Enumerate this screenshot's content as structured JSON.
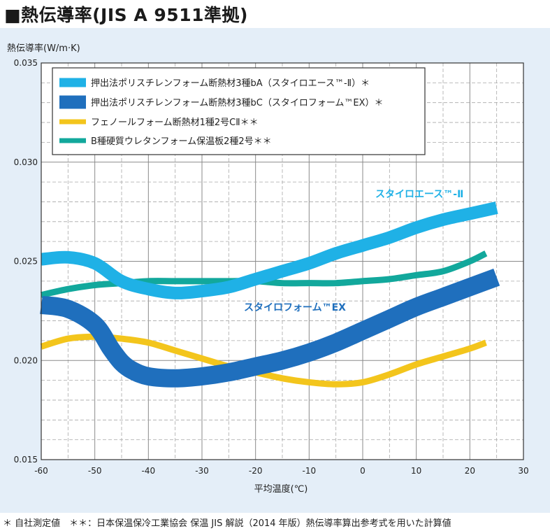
{
  "title": "■熱伝導率(JIS A 9511準拠)",
  "footnote": "＊ 自社測定値　＊＊：日本保温保冷工業協会 保温 JIS 解説（2014 年版）熱伝導率算出参考式を用いた計算値",
  "chart_data": {
    "type": "line",
    "ylabel": "熱伝導率(W/m·K)",
    "xlabel": "平均温度(℃)",
    "xlim": [
      -60,
      30
    ],
    "ylim": [
      0.015,
      0.035
    ],
    "x_ticks": [
      "-60",
      "-50",
      "-40",
      "-30",
      "-20",
      "-10",
      "0",
      "10",
      "20",
      "30"
    ],
    "y_ticks": [
      "0.015",
      "0.020",
      "0.025",
      "0.030",
      "0.035"
    ],
    "grid": true,
    "legend_position": "top-left",
    "series": [
      {
        "name": "押出法ポリスチレンフォーム断熱材3種bA（スタイロエース™-Ⅱ）＊",
        "label": "スタイロエース™-Ⅱ",
        "color": "#1fb1e6",
        "x": [
          -60,
          -55,
          -50,
          -45,
          -40,
          -35,
          -30,
          -25,
          -20,
          -15,
          -10,
          -5,
          0,
          5,
          10,
          15,
          20,
          25
        ],
        "y": [
          0.0251,
          0.0252,
          0.0249,
          0.024,
          0.0236,
          0.0234,
          0.0235,
          0.0237,
          0.0241,
          0.0245,
          0.0249,
          0.0254,
          0.0258,
          0.0262,
          0.0267,
          0.0271,
          0.0274,
          0.0277
        ]
      },
      {
        "name": "押出法ポリスチレンフォーム断熱材3種bC（スタイロフォーム™EX）＊",
        "label": "スタイロフォーム™EX",
        "color": "#1f6fbd",
        "x": [
          -60,
          -55,
          -50,
          -47,
          -45,
          -43,
          -40,
          -35,
          -30,
          -25,
          -20,
          -15,
          -10,
          -5,
          0,
          5,
          10,
          15,
          20,
          25
        ],
        "y": [
          0.0228,
          0.0226,
          0.0218,
          0.0206,
          0.0199,
          0.0195,
          0.0192,
          0.0191,
          0.0192,
          0.0194,
          0.0197,
          0.02,
          0.0204,
          0.0209,
          0.0215,
          0.0221,
          0.0227,
          0.0232,
          0.0237,
          0.0242
        ]
      },
      {
        "name": "フェノールフォーム断熱材1種2号CⅡ＊＊",
        "color": "#f3c51c",
        "x": [
          -60,
          -55,
          -50,
          -45,
          -40,
          -35,
          -30,
          -25,
          -20,
          -15,
          -10,
          -5,
          0,
          5,
          10,
          15,
          20,
          23
        ],
        "y": [
          0.0207,
          0.0211,
          0.0212,
          0.0211,
          0.0209,
          0.0205,
          0.0201,
          0.0197,
          0.0194,
          0.0191,
          0.0189,
          0.0188,
          0.0189,
          0.0193,
          0.0198,
          0.0202,
          0.0206,
          0.0209
        ]
      },
      {
        "name": "B種硬質ウレタンフォーム保温板2種2号＊＊",
        "color": "#12a89c",
        "x": [
          -60,
          -55,
          -50,
          -45,
          -40,
          -35,
          -30,
          -25,
          -20,
          -15,
          -10,
          -5,
          0,
          5,
          10,
          15,
          20,
          23
        ],
        "y": [
          0.0233,
          0.0236,
          0.0238,
          0.0239,
          0.024,
          0.024,
          0.024,
          0.024,
          0.024,
          0.0239,
          0.0239,
          0.0239,
          0.024,
          0.0241,
          0.0243,
          0.0245,
          0.025,
          0.0254
        ]
      }
    ]
  }
}
